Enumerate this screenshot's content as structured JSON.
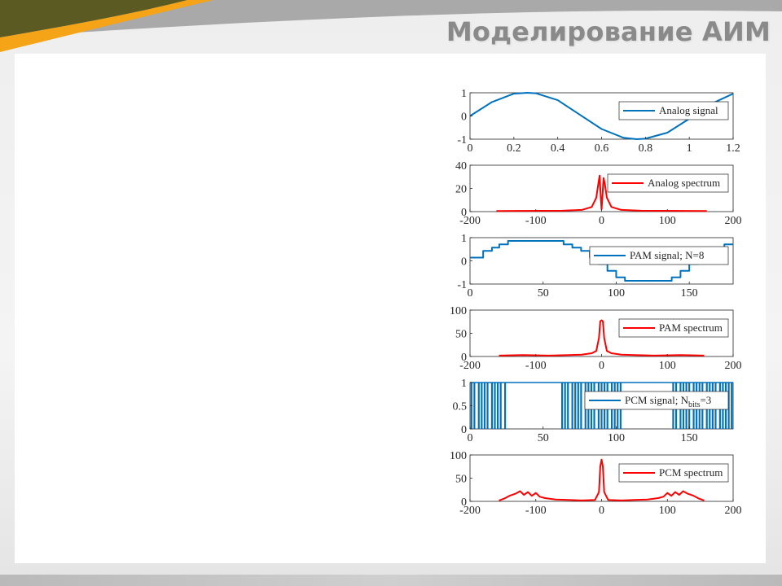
{
  "slide": {
    "title": "Моделирование АИМ",
    "colors": {
      "accent_orange": "#f5a418",
      "accent_olive": "#5b5a22",
      "title_gray": "#8a8a8a"
    }
  },
  "chart_data": [
    {
      "type": "line",
      "legend": "Analog signal",
      "legend_position": "top-right",
      "color": "#0072bd",
      "xlim": [
        0,
        1.2
      ],
      "ylim": [
        -1,
        1
      ],
      "xticks": [
        "0",
        "0.2",
        "0.4",
        "0.6",
        "0.8",
        "1",
        "1.2"
      ],
      "yticks": [
        "1",
        "0",
        "-1"
      ],
      "x": [
        0,
        0.1,
        0.2,
        0.26,
        0.3,
        0.4,
        0.5,
        0.6,
        0.7,
        0.76,
        0.8,
        0.9,
        1.0,
        1.1,
        1.2
      ],
      "y": [
        0,
        0.6,
        0.96,
        1.0,
        0.98,
        0.68,
        0.06,
        -0.56,
        -0.94,
        -1.0,
        -0.98,
        -0.72,
        -0.12,
        0.52,
        0.96
      ]
    },
    {
      "type": "line",
      "legend": "Analog spectrum",
      "legend_position": "top-right",
      "color": "#ff0000",
      "xlim": [
        -200,
        200
      ],
      "ylim": [
        0,
        40
      ],
      "xticks": [
        "-200",
        "-100",
        "0",
        "100",
        "200"
      ],
      "yticks": [
        "40",
        "20",
        "0"
      ],
      "x": [
        -160,
        -60,
        -30,
        -15,
        -8,
        -5,
        -3,
        -1,
        0,
        1,
        3,
        5,
        8,
        15,
        30,
        60,
        160
      ],
      "y": [
        0.5,
        0.8,
        1.5,
        4,
        12,
        24,
        31,
        10,
        2,
        10,
        29,
        24,
        12,
        4,
        1.5,
        0.8,
        0.5
      ]
    },
    {
      "type": "line",
      "legend": "PAM signal; N=8",
      "legend_position": "top-right",
      "color": "#0072bd",
      "step": true,
      "xlim": [
        0,
        180
      ],
      "ylim": [
        -1,
        1
      ],
      "xticks": [
        "0",
        "50",
        "100",
        "150"
      ],
      "yticks": [
        "1",
        "0",
        "-1"
      ],
      "x": [
        0,
        9,
        15,
        20,
        26,
        64,
        70,
        76,
        82,
        88,
        94,
        100,
        106,
        138,
        144,
        150,
        156,
        162,
        168,
        174,
        180
      ],
      "y": [
        0.14,
        0.43,
        0.57,
        0.71,
        0.86,
        0.71,
        0.57,
        0.43,
        0.14,
        -0.14,
        -0.43,
        -0.71,
        -0.86,
        -0.71,
        -0.43,
        -0.14,
        0.14,
        0.43,
        0.57,
        0.71,
        0.71
      ]
    },
    {
      "type": "line",
      "legend": "PAM spectrum",
      "legend_position": "top-right",
      "color": "#ff0000",
      "xlim": [
        -200,
        200
      ],
      "ylim": [
        0,
        100
      ],
      "xticks": [
        "-200",
        "-100",
        "0",
        "100",
        "200"
      ],
      "yticks": [
        "100",
        "50",
        "0"
      ],
      "x": [
        -156,
        -120,
        -80,
        -50,
        -30,
        -15,
        -8,
        -4,
        -2,
        0,
        2,
        4,
        8,
        15,
        30,
        50,
        80,
        120,
        156
      ],
      "y": [
        2,
        3,
        2,
        3,
        4,
        7,
        12,
        40,
        76,
        78,
        76,
        40,
        12,
        7,
        4,
        3,
        2,
        3,
        2
      ]
    },
    {
      "type": "bar",
      "legend": "PCM signal; N",
      "legend_sub": "bits",
      "legend_tail": "=3",
      "legend_position": "top-right",
      "color": "#0072bd",
      "xlim": [
        0,
        180
      ],
      "ylim": [
        0,
        1
      ],
      "xticks": [
        "0",
        "50",
        "100",
        "150"
      ],
      "yticks": [
        "1",
        "0.5",
        "0"
      ],
      "x": [
        1,
        3,
        6,
        8,
        10,
        12,
        15,
        17,
        19,
        21,
        24,
        63,
        65,
        67,
        70,
        72,
        74,
        76,
        79,
        81,
        83,
        85,
        88,
        90,
        92,
        94,
        97,
        99,
        101,
        103,
        139,
        141,
        144,
        146,
        148,
        150,
        153,
        155,
        157,
        159,
        162,
        164,
        166,
        168,
        171,
        173,
        175,
        177,
        179
      ],
      "y": [
        1,
        1,
        1,
        1,
        1,
        1,
        1,
        1,
        1,
        1,
        1,
        1,
        1,
        1,
        1,
        1,
        1,
        1,
        1,
        1,
        1,
        1,
        1,
        1,
        1,
        1,
        1,
        1,
        1,
        1,
        1,
        1,
        1,
        1,
        1,
        1,
        1,
        1,
        1,
        1,
        1,
        1,
        1,
        1,
        1,
        1,
        1,
        1,
        1
      ]
    },
    {
      "type": "line",
      "legend": "PCM spectrum",
      "legend_position": "top-right",
      "color": "#ff0000",
      "xlim": [
        -200,
        200
      ],
      "ylim": [
        0,
        100
      ],
      "xticks": [
        "-200",
        "-100",
        "0",
        "100",
        "200"
      ],
      "yticks": [
        "100",
        "50",
        "0"
      ],
      "x": [
        -156,
        -148,
        -140,
        -130,
        -124,
        -118,
        -112,
        -106,
        -100,
        -94,
        -86,
        -70,
        -50,
        -30,
        -10,
        -4,
        -2,
        0,
        2,
        4,
        10,
        30,
        50,
        70,
        86,
        94,
        100,
        106,
        112,
        118,
        124,
        130,
        140,
        148,
        156
      ],
      "y": [
        2,
        6,
        12,
        17,
        22,
        14,
        20,
        12,
        18,
        10,
        7,
        4,
        3,
        2,
        3,
        20,
        75,
        90,
        75,
        20,
        3,
        2,
        3,
        4,
        7,
        10,
        18,
        12,
        20,
        14,
        22,
        17,
        12,
        6,
        2
      ]
    }
  ]
}
